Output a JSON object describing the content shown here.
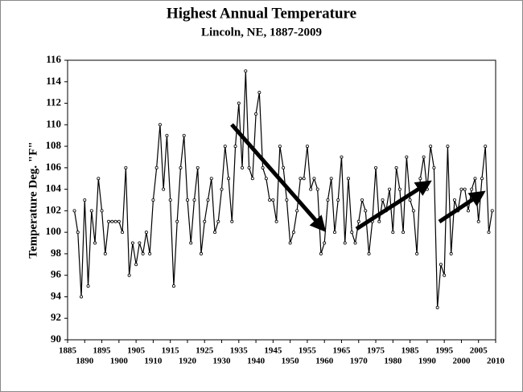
{
  "chart_data": {
    "type": "line",
    "title": "Highest Annual Temperature",
    "subtitle": "Lincoln, NE, 1887-2009",
    "y_label": "Temperature Deg. \"F\"",
    "x": [
      1887,
      1888,
      1889,
      1890,
      1891,
      1892,
      1893,
      1894,
      1895,
      1896,
      1897,
      1898,
      1899,
      1900,
      1901,
      1902,
      1903,
      1904,
      1905,
      1906,
      1907,
      1908,
      1909,
      1910,
      1911,
      1912,
      1913,
      1914,
      1915,
      1916,
      1917,
      1918,
      1919,
      1920,
      1921,
      1922,
      1923,
      1924,
      1925,
      1926,
      1927,
      1928,
      1929,
      1930,
      1931,
      1932,
      1933,
      1934,
      1935,
      1936,
      1937,
      1938,
      1939,
      1940,
      1941,
      1942,
      1943,
      1944,
      1945,
      1946,
      1947,
      1948,
      1949,
      1950,
      1951,
      1952,
      1953,
      1954,
      1955,
      1956,
      1957,
      1958,
      1959,
      1960,
      1961,
      1962,
      1963,
      1964,
      1965,
      1966,
      1967,
      1968,
      1969,
      1970,
      1971,
      1972,
      1973,
      1974,
      1975,
      1976,
      1977,
      1978,
      1979,
      1980,
      1981,
      1982,
      1983,
      1984,
      1985,
      1986,
      1987,
      1988,
      1989,
      1990,
      1991,
      1992,
      1993,
      1994,
      1995,
      1996,
      1997,
      1998,
      1999,
      2000,
      2001,
      2002,
      2003,
      2004,
      2005,
      2006,
      2007,
      2008,
      2009
    ],
    "series": [
      {
        "name": "Highest Annual Temperature",
        "color": "#000000",
        "values": [
          102,
          100,
          94,
          103,
          95,
          102,
          99,
          105,
          102,
          98,
          101,
          101,
          101,
          101,
          100,
          106,
          96,
          99,
          97,
          99,
          98,
          100,
          98,
          103,
          106,
          110,
          104,
          109,
          103,
          95,
          101,
          106,
          109,
          103,
          99,
          103,
          106,
          98,
          101,
          103,
          105,
          100,
          101,
          104,
          108,
          105,
          101,
          108,
          112,
          106,
          115,
          106,
          105,
          111,
          113,
          106,
          105,
          103,
          103,
          101,
          108,
          106,
          103,
          99,
          100,
          102,
          105,
          105,
          108,
          104,
          105,
          104,
          98,
          99,
          103,
          105,
          100,
          103,
          107,
          99,
          105,
          100,
          99,
          101,
          103,
          102,
          98,
          101,
          106,
          101,
          103,
          102,
          104,
          100,
          106,
          104,
          100,
          107,
          103,
          102,
          98,
          105,
          107,
          104,
          108,
          106,
          93,
          97,
          96,
          108,
          98,
          103,
          102,
          104,
          104,
          102,
          104,
          105,
          101,
          105,
          108,
          100,
          102
        ]
      }
    ],
    "xlim": [
      1885,
      2010
    ],
    "xticks": [
      1885,
      1890,
      1895,
      1900,
      1905,
      1910,
      1915,
      1920,
      1925,
      1930,
      1935,
      1940,
      1945,
      1950,
      1955,
      1960,
      1965,
      1970,
      1975,
      1980,
      1985,
      1990,
      1995,
      2000,
      2005,
      2010
    ],
    "ylim": [
      90,
      116
    ],
    "yticks": [
      90,
      92,
      94,
      96,
      98,
      100,
      102,
      104,
      106,
      108,
      110,
      112,
      114,
      116
    ],
    "grid": false
  }
}
